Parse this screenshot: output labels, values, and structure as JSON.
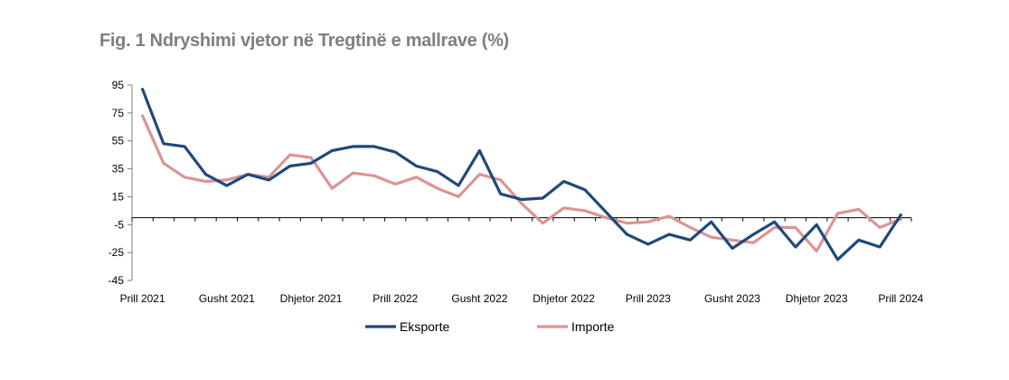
{
  "title": "Fig. 1 Ndryshimi vjetor në Tregtinë e mallrave (%)",
  "chart_data": {
    "type": "line",
    "title": "Fig. 1 Ndryshimi vjetor në Tregtinë e mallrave (%)",
    "xlabel": "",
    "ylabel": "",
    "ylim": [
      -45,
      95
    ],
    "yticks": [
      95,
      75,
      55,
      35,
      15,
      -5,
      -25,
      -45
    ],
    "x_tick_labels": [
      "Prill 2021",
      "Gusht 2021",
      "Dhjetor 2021",
      "Prill 2022",
      "Gusht 2022",
      "Dhjetor 2022",
      "Prill 2023",
      "Gusht 2023",
      "Dhjetor 2023",
      "Prill 2024"
    ],
    "x_tick_every": 4,
    "grid": false,
    "legend_position": "bottom",
    "zero_line": 0,
    "series": [
      {
        "name": "Eksporte",
        "color": "#1f497d",
        "values": [
          92,
          53,
          51,
          31,
          23,
          31,
          27,
          37,
          39,
          48,
          51,
          51,
          47,
          37,
          33,
          23,
          48,
          17,
          13,
          14,
          26,
          20,
          4,
          -12,
          -19,
          -12,
          -16,
          -3,
          -22,
          -12,
          -3,
          -21,
          -5,
          -30,
          -16,
          -21,
          2
        ]
      },
      {
        "name": "Importe",
        "color": "#d99594",
        "values": [
          73,
          39,
          29,
          26,
          27,
          31,
          29,
          45,
          43,
          21,
          32,
          30,
          24,
          29,
          21,
          15,
          31,
          27,
          10,
          -4,
          7,
          5,
          0,
          -4,
          -3,
          1,
          -7,
          -14,
          -16,
          -18,
          -7,
          -7,
          -24,
          3,
          6,
          -7,
          -1
        ]
      }
    ]
  }
}
